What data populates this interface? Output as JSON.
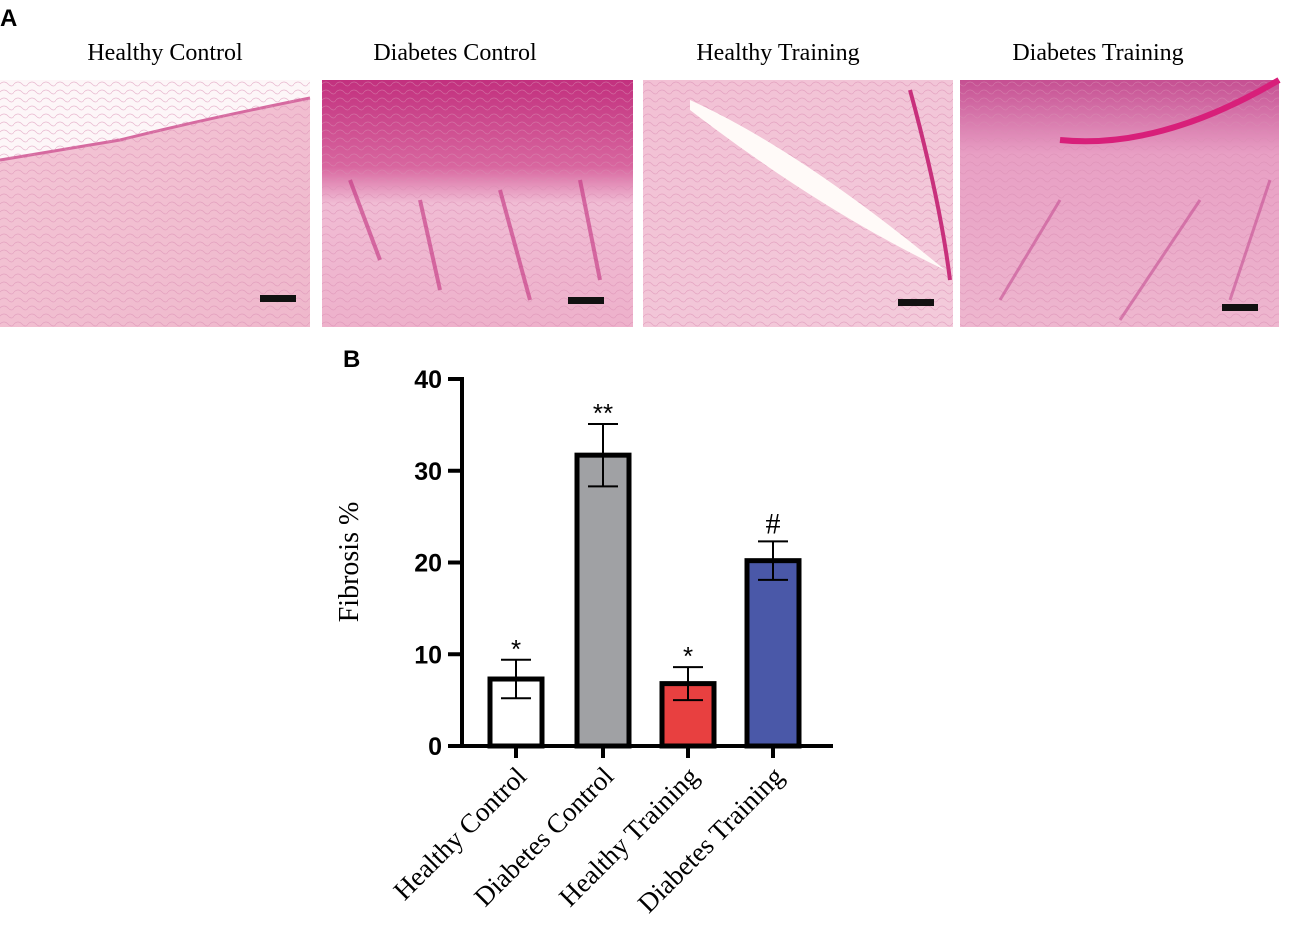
{
  "panel_a": {
    "label": "A",
    "captions": [
      "Healthy Control",
      "Diabetes  Control",
      "Healthy Training",
      "Diabetes  Training"
    ]
  },
  "chart_data": {
    "type": "bar",
    "panel_label": "B",
    "y_label": "Fibrosis %",
    "categories": [
      "Healthy Control",
      "Diabetes Control",
      "Healthy Training",
      "Diabetes Training"
    ],
    "values": [
      7.3,
      31.7,
      6.8,
      20.2
    ],
    "errors": [
      2.1,
      3.4,
      1.8,
      2.1
    ],
    "annotations": [
      "*",
      "**",
      "*",
      "#"
    ],
    "colors": [
      "#ffffff",
      "#a0a1a4",
      "#e84040",
      "#4a58a8"
    ],
    "ylim": [
      0,
      40
    ],
    "yticks": [
      0,
      10,
      20,
      30,
      40
    ]
  }
}
